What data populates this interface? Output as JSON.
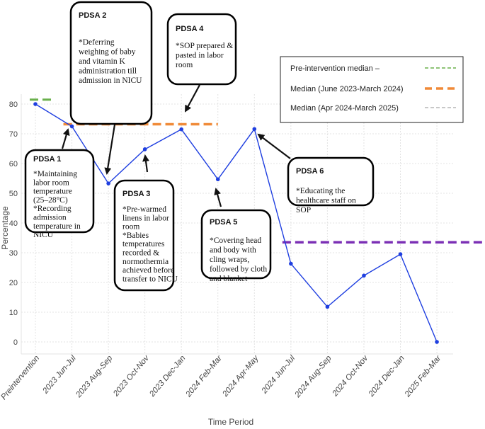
{
  "chart_data": {
    "type": "line",
    "title": "",
    "xlabel": "Time Period",
    "ylabel": "Percentage",
    "ylim": [
      -2.5,
      84
    ],
    "yticks": [
      0,
      10,
      20,
      30,
      40,
      50,
      60,
      70,
      80
    ],
    "grid": true,
    "categories": [
      "Preintervention",
      "2023 Jun-Jul",
      "2023 Aug-Sep",
      "2023 Oct-Nov",
      "2023 Dec-Jan",
      "2024 Feb-Mar",
      "2024 Apr-May",
      "2024 Jun-Jul",
      "2024 Aug-Sep",
      "2024 Oct-Nov",
      "2024 Dec-Jan",
      "2025 Feb-Mar"
    ],
    "series": [
      {
        "values": [
          80,
          72.5,
          53.3,
          64.8,
          71.5,
          54.7,
          71.6,
          26.3,
          11.8,
          22.3,
          29.5,
          0
        ],
        "color": "#1f3fe0"
      }
    ],
    "medians": [
      {
        "label": "Pre-intervention median –",
        "value": 81.5,
        "from": 0,
        "to": 0.5,
        "color": "#6ab04c",
        "style": "dashed"
      },
      {
        "label": "Median (June 2023-March 2024)",
        "value": 73.2,
        "from": 1,
        "to": 5,
        "color": "#f08a38",
        "style": "dashed"
      },
      {
        "label": "Median (Apr 2024-March 2025)",
        "value": 33.5,
        "from": 7,
        "to": 12,
        "color": "#7b2fb5",
        "style": "dashed"
      }
    ],
    "legend": {
      "placement": "top-right",
      "entries": [
        {
          "label": "Pre-intervention median –",
          "color": "#6ab04c",
          "style": "dashed"
        },
        {
          "label": "Median (June 2023-March 2024)",
          "color": "#f08a38",
          "style": "dashed"
        },
        {
          "label": "Median (Apr 2024-March 2025)",
          "color": "#b5b5b5",
          "style": "dashed"
        }
      ]
    },
    "annotations": [
      {
        "title": "PDSA 1",
        "lines": [
          "*Maintaining",
          "labor room",
          "temperature",
          "(25–28°C)",
          "*Recording",
          "admission",
          "temperature in",
          "NICU"
        ]
      },
      {
        "title": "PDSA 2",
        "lines": [
          "*Deferring",
          "weighing of baby",
          "and vitamin K",
          "administration till",
          "admission in NICU"
        ]
      },
      {
        "title": "PDSA 3",
        "lines": [
          "*Pre-warmed",
          "linens in labor",
          "room",
          "*Babies",
          "temperatures",
          "recorded &",
          "normothermia",
          "achieved before",
          "transfer to NICU"
        ]
      },
      {
        "title": "PDSA 4",
        "lines": [
          "*SOP prepared &",
          "pasted in labor",
          "room"
        ]
      },
      {
        "title": "PDSA 5",
        "lines": [
          "*Covering head",
          "and body with",
          "cling wraps,",
          "followed by cloth",
          "and blanket"
        ]
      },
      {
        "title": "PDSA 6",
        "lines": [
          "*Educating the",
          "healthcare staff on",
          "SOP"
        ]
      }
    ]
  }
}
